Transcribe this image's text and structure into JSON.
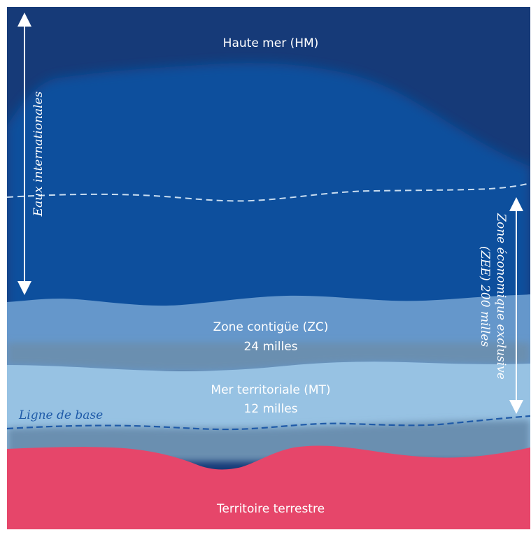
{
  "zones": {
    "high_seas": {
      "label": "Haute mer (HM)"
    },
    "contiguous": {
      "label_line1": "Zone contigüe (ZC)",
      "label_line2": "24 milles"
    },
    "territorial": {
      "label_line1": "Mer territoriale (MT)",
      "label_line2": "12 milles"
    },
    "land": {
      "label": "Territoire terrestre"
    }
  },
  "annotations": {
    "international_waters": "Eaux internationales",
    "eez_line1": "Zone économique exclusive",
    "eez_line2": "(ZEE) 200 milles",
    "baseline": "Ligne de base"
  },
  "colors": {
    "high_seas": "#163a78",
    "eez": "#0b4f9d",
    "contiguous": "#6597cb",
    "territorial": "#97c2e3",
    "transition": "#6a8fb0",
    "land": "#e6466a",
    "baseline": "#1e5aa8"
  }
}
